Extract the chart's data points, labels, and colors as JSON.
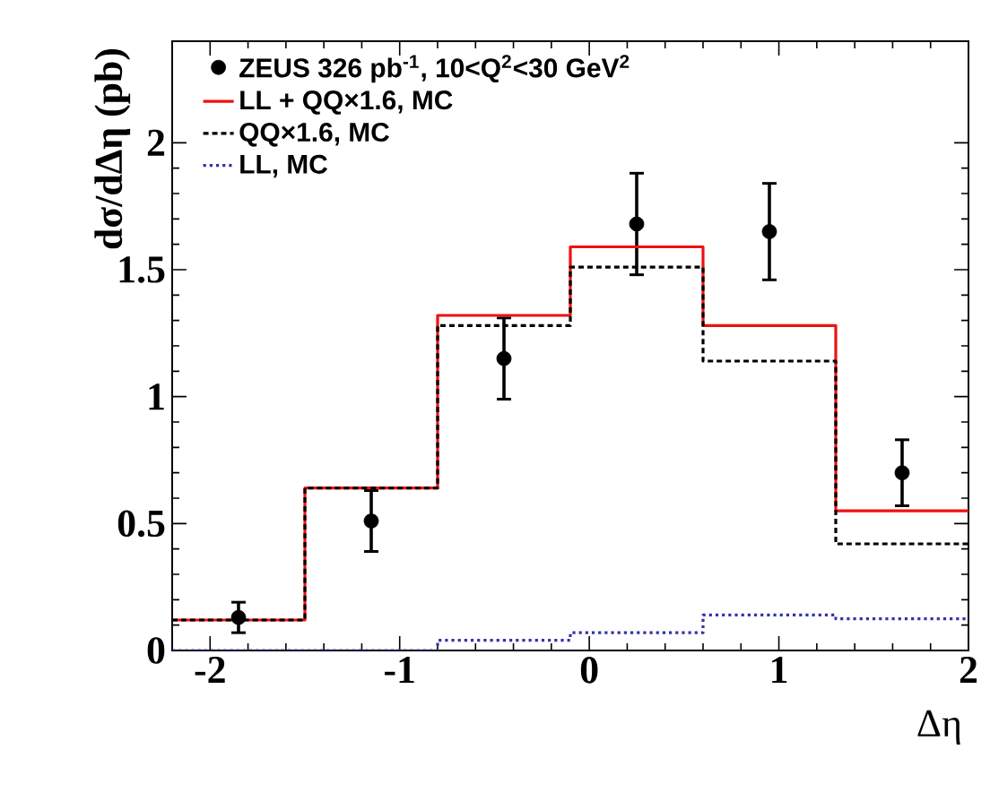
{
  "chart_data": {
    "type": "histogram",
    "xlabel": "Δη",
    "ylabel": "dσ/dΔη (pb)",
    "bins": [
      -2.2,
      -1.5,
      -0.8,
      -0.1,
      0.6,
      1.3,
      2.0
    ],
    "series": [
      {
        "name": "ZEUS 326 pb$^{-1}$, 10<Q$^{2}$<30 GeV$^{2}$",
        "type": "scatter",
        "color": "#000000",
        "x": [
          -1.85,
          -1.15,
          -0.45,
          0.25,
          0.95,
          1.65
        ],
        "values": [
          0.13,
          0.51,
          1.15,
          1.68,
          1.65,
          0.7
        ],
        "errors": [
          0.06,
          0.12,
          0.16,
          0.2,
          0.19,
          0.13
        ]
      },
      {
        "name": "LL + QQ×1.6, MC",
        "color": "#ee1111",
        "line_style": "solid",
        "values": [
          0.12,
          0.64,
          1.32,
          1.59,
          1.28,
          0.55
        ]
      },
      {
        "name": "QQ×1.6, MC",
        "color": "#000000",
        "line_style": "dashed",
        "values": [
          0.12,
          0.64,
          1.28,
          1.51,
          1.14,
          0.42
        ]
      },
      {
        "name": "LL, MC",
        "color": "#3333aa",
        "line_style": "dotted",
        "values": [
          0.0,
          0.0,
          0.04,
          0.07,
          0.14,
          0.125
        ]
      }
    ],
    "xlim": [
      -2.2,
      2.0
    ],
    "ylim": [
      0,
      2.4
    ],
    "xticks": [
      -2,
      -1,
      0,
      1,
      2
    ],
    "yticks": [
      0,
      0.5,
      1,
      1.5,
      2
    ],
    "grid": false,
    "legend": "top left",
    "marker": "circle"
  }
}
